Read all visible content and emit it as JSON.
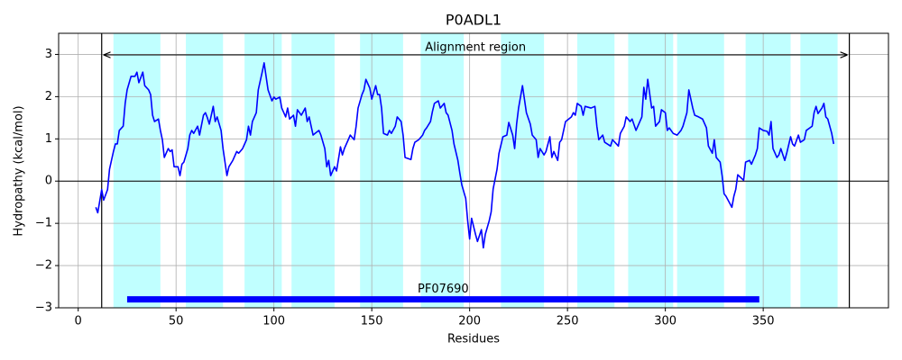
{
  "chart_data": {
    "type": "line",
    "title": "P0ADL1",
    "xlabel": "Residues",
    "ylabel": "Hydropathy (kcal/mol)",
    "color": "#0000ff",
    "grid": true,
    "xlim": [
      -10,
      414
    ],
    "ylim": [
      -3,
      3.5
    ],
    "xticks": [
      0,
      50,
      100,
      150,
      200,
      250,
      300,
      350
    ],
    "yticks": [
      {
        "value": -3,
        "label": "−3"
      },
      {
        "value": -2,
        "label": "−2"
      },
      {
        "value": -1,
        "label": "−1"
      },
      0,
      1,
      2,
      3
    ],
    "x": [
      9,
      10,
      12,
      13,
      15,
      16,
      18,
      19,
      20,
      21,
      23,
      24,
      25,
      27,
      29,
      30,
      31,
      33,
      34,
      36,
      37,
      38,
      39,
      41,
      42,
      43,
      44,
      46,
      47,
      48,
      49,
      51,
      52,
      53,
      54,
      56,
      57,
      58,
      59,
      61,
      62,
      64,
      65,
      66,
      67,
      69,
      70,
      71,
      73,
      74,
      76,
      77,
      79,
      81,
      82,
      84,
      86,
      87,
      88,
      89,
      91,
      92,
      94,
      95,
      96,
      97,
      99,
      100,
      101,
      103,
      104,
      106,
      107,
      108,
      110,
      111,
      112,
      114,
      116,
      117,
      118,
      120,
      121,
      123,
      124,
      126,
      127,
      128,
      129,
      131,
      132,
      134,
      135,
      136,
      138,
      139,
      141,
      142,
      143,
      145,
      146,
      147,
      149,
      150,
      152,
      153,
      154,
      155,
      156,
      158,
      159,
      160,
      162,
      163,
      165,
      166,
      167,
      170,
      171,
      172,
      174,
      176,
      177,
      178,
      180,
      181,
      182,
      184,
      185,
      187,
      188,
      189,
      191,
      192,
      194,
      195,
      196,
      198,
      199,
      200,
      201,
      203,
      204,
      206,
      207,
      208,
      210,
      211,
      212,
      214,
      215,
      217,
      219,
      220,
      222,
      223,
      224,
      225,
      227,
      228,
      229,
      231,
      232,
      234,
      235,
      236,
      238,
      239,
      241,
      242,
      243,
      245,
      246,
      247,
      249,
      252,
      253,
      254,
      255,
      257,
      258,
      259,
      262,
      264,
      265,
      266,
      268,
      269,
      272,
      273,
      275,
      276,
      277,
      279,
      280,
      282,
      283,
      285,
      288,
      289,
      290,
      291,
      293,
      294,
      295,
      297,
      298,
      300,
      301,
      302,
      304,
      306,
      308,
      309,
      311,
      312,
      314,
      315,
      317,
      319,
      321,
      322,
      324,
      325,
      326,
      328,
      329,
      330,
      331,
      334,
      335,
      336,
      337,
      340,
      341,
      343,
      344,
      346,
      347,
      348,
      350,
      352,
      353,
      354,
      355,
      357,
      358,
      359,
      361,
      362,
      364,
      365,
      366,
      368,
      369,
      371,
      372,
      375,
      376,
      377,
      378,
      380,
      381,
      382,
      383,
      385,
      386
    ],
    "values": [
      -0.62,
      -0.75,
      -0.2,
      -0.45,
      -0.2,
      0.28,
      0.7,
      0.88,
      0.88,
      1.2,
      1.3,
      1.84,
      2.16,
      2.48,
      2.48,
      2.58,
      2.33,
      2.58,
      2.26,
      2.16,
      2.05,
      1.56,
      1.41,
      1.47,
      1.2,
      0.98,
      0.56,
      0.77,
      0.7,
      0.74,
      0.34,
      0.34,
      0.13,
      0.4,
      0.45,
      0.77,
      1.09,
      1.2,
      1.13,
      1.3,
      1.09,
      1.56,
      1.62,
      1.5,
      1.35,
      1.77,
      1.41,
      1.52,
      1.2,
      0.77,
      0.13,
      0.34,
      0.49,
      0.7,
      0.66,
      0.77,
      0.98,
      1.3,
      1.09,
      1.41,
      1.62,
      2.16,
      2.58,
      2.8,
      2.48,
      2.16,
      1.9,
      1.99,
      1.94,
      1.99,
      1.73,
      1.52,
      1.73,
      1.47,
      1.56,
      1.3,
      1.69,
      1.56,
      1.73,
      1.41,
      1.52,
      1.09,
      1.13,
      1.2,
      1.09,
      0.77,
      0.34,
      0.49,
      0.13,
      0.34,
      0.24,
      0.81,
      0.62,
      0.77,
      0.98,
      1.09,
      0.98,
      1.3,
      1.73,
      2.05,
      2.16,
      2.41,
      2.2,
      1.94,
      2.26,
      2.05,
      2.05,
      1.73,
      1.13,
      1.09,
      1.2,
      1.13,
      1.3,
      1.52,
      1.41,
      1.09,
      0.56,
      0.51,
      0.77,
      0.92,
      0.98,
      1.09,
      1.2,
      1.26,
      1.41,
      1.65,
      1.84,
      1.9,
      1.73,
      1.84,
      1.62,
      1.56,
      1.2,
      0.88,
      0.49,
      0.19,
      -0.09,
      -0.41,
      -0.94,
      -1.37,
      -0.88,
      -1.26,
      -1.43,
      -1.15,
      -1.58,
      -1.26,
      -0.94,
      -0.73,
      -0.19,
      0.28,
      0.66,
      1.05,
      1.09,
      1.39,
      1.09,
      0.77,
      1.35,
      1.73,
      2.26,
      1.94,
      1.62,
      1.35,
      1.09,
      0.98,
      0.56,
      0.77,
      0.62,
      0.7,
      1.05,
      0.56,
      0.7,
      0.49,
      0.92,
      0.98,
      1.41,
      1.52,
      1.62,
      1.56,
      1.84,
      1.77,
      1.56,
      1.77,
      1.73,
      1.77,
      1.3,
      0.98,
      1.09,
      0.92,
      0.83,
      0.98,
      0.88,
      0.83,
      1.13,
      1.3,
      1.52,
      1.41,
      1.47,
      1.2,
      1.52,
      2.22,
      1.94,
      2.41,
      1.73,
      1.77,
      1.3,
      1.41,
      1.69,
      1.62,
      1.2,
      1.26,
      1.13,
      1.09,
      1.2,
      1.3,
      1.62,
      2.16,
      1.73,
      1.56,
      1.52,
      1.47,
      1.26,
      0.83,
      0.66,
      0.98,
      0.56,
      0.45,
      0.13,
      -0.3,
      -0.36,
      -0.62,
      -0.36,
      -0.19,
      0.15,
      0.02,
      0.45,
      0.49,
      0.4,
      0.62,
      0.77,
      1.26,
      1.2,
      1.18,
      1.09,
      1.41,
      0.77,
      0.56,
      0.62,
      0.77,
      0.49,
      0.66,
      1.05,
      0.88,
      0.83,
      1.09,
      0.92,
      0.98,
      1.2,
      1.3,
      1.62,
      1.77,
      1.6,
      1.73,
      1.84,
      1.52,
      1.47,
      1.13,
      0.88
    ],
    "regions": [
      [
        18,
        42
      ],
      [
        55,
        74
      ],
      [
        85,
        104
      ],
      [
        109,
        131
      ],
      [
        144,
        166
      ],
      [
        175,
        197
      ],
      [
        216,
        238
      ],
      [
        255,
        274
      ],
      [
        281,
        304
      ],
      [
        306,
        330
      ],
      [
        341,
        364
      ],
      [
        369,
        388
      ]
    ],
    "region_color": "#c0ffff",
    "alignment_region": {
      "label": "Alignment region",
      "start": 12,
      "end": 394
    },
    "domains": [
      {
        "name": "PF07690",
        "start": 25,
        "end": 348,
        "y": -2.8,
        "color": "#0000ff"
      }
    ]
  }
}
